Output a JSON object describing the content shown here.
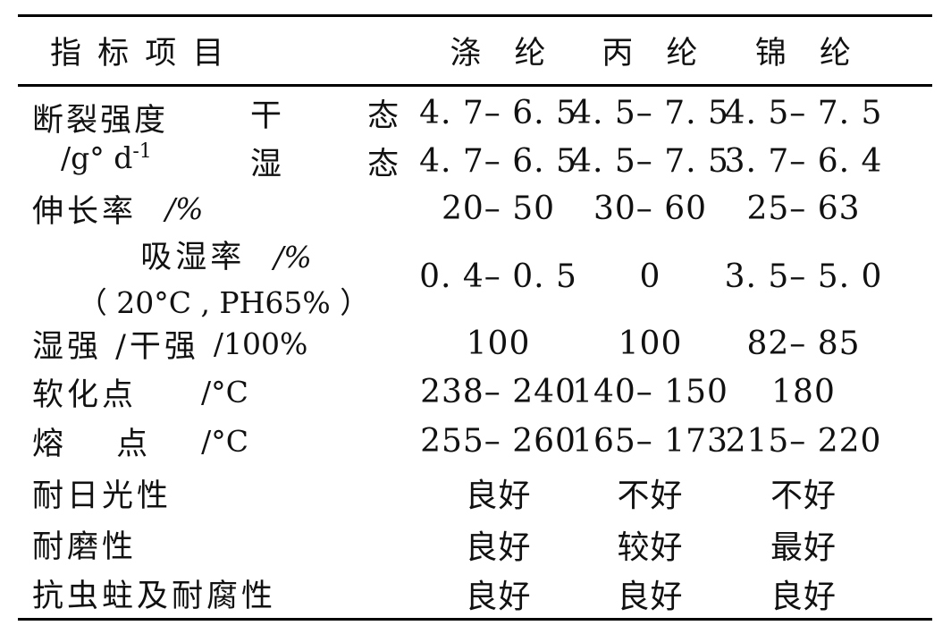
{
  "table": {
    "header": {
      "indicator": "指 标 项 目",
      "fibers": [
        "涤 纶",
        "丙 纶",
        "锦 纶"
      ]
    },
    "rows": [
      {
        "label": "断裂强度",
        "unit_base": "/g° d",
        "unit_exp": "-1",
        "sub": [
          {
            "state": "干 态",
            "values": [
              "4. 7– 6. 5",
              "4. 5– 7. 5",
              "4. 5– 7. 5"
            ]
          },
          {
            "state": "湿 态",
            "values": [
              "4. 7– 6. 5",
              "4. 5– 7. 5",
              "3. 7– 6. 4"
            ]
          }
        ]
      },
      {
        "label": "伸长率",
        "unit": "/%",
        "values": [
          "20– 50",
          "30– 60",
          "25– 63"
        ]
      },
      {
        "label": "吸湿率",
        "unit": "/%",
        "note": "（ 20°C , PH65% ）",
        "values": [
          "0. 4– 0. 5",
          "0",
          "3. 5– 5. 0"
        ]
      },
      {
        "label": "湿强 /干强",
        "unit": "/100%",
        "values": [
          "100",
          "100",
          "82– 85"
        ]
      },
      {
        "label": "软化点",
        "unit": "/°C",
        "values": [
          "238– 240",
          "140– 150",
          "180"
        ]
      },
      {
        "label": "熔 点",
        "unit": "/°C",
        "values": [
          "255– 260",
          "165– 173",
          "215– 220"
        ]
      },
      {
        "label": "耐日光性",
        "unit": "",
        "values": [
          "良好",
          "不好",
          "不好"
        ]
      },
      {
        "label": "耐磨性",
        "unit": "",
        "values": [
          "良好",
          "较好",
          "最好"
        ]
      },
      {
        "label": "抗虫蛀及耐腐性",
        "unit": "",
        "values": [
          "良好",
          "良好",
          "良好"
        ]
      }
    ]
  }
}
